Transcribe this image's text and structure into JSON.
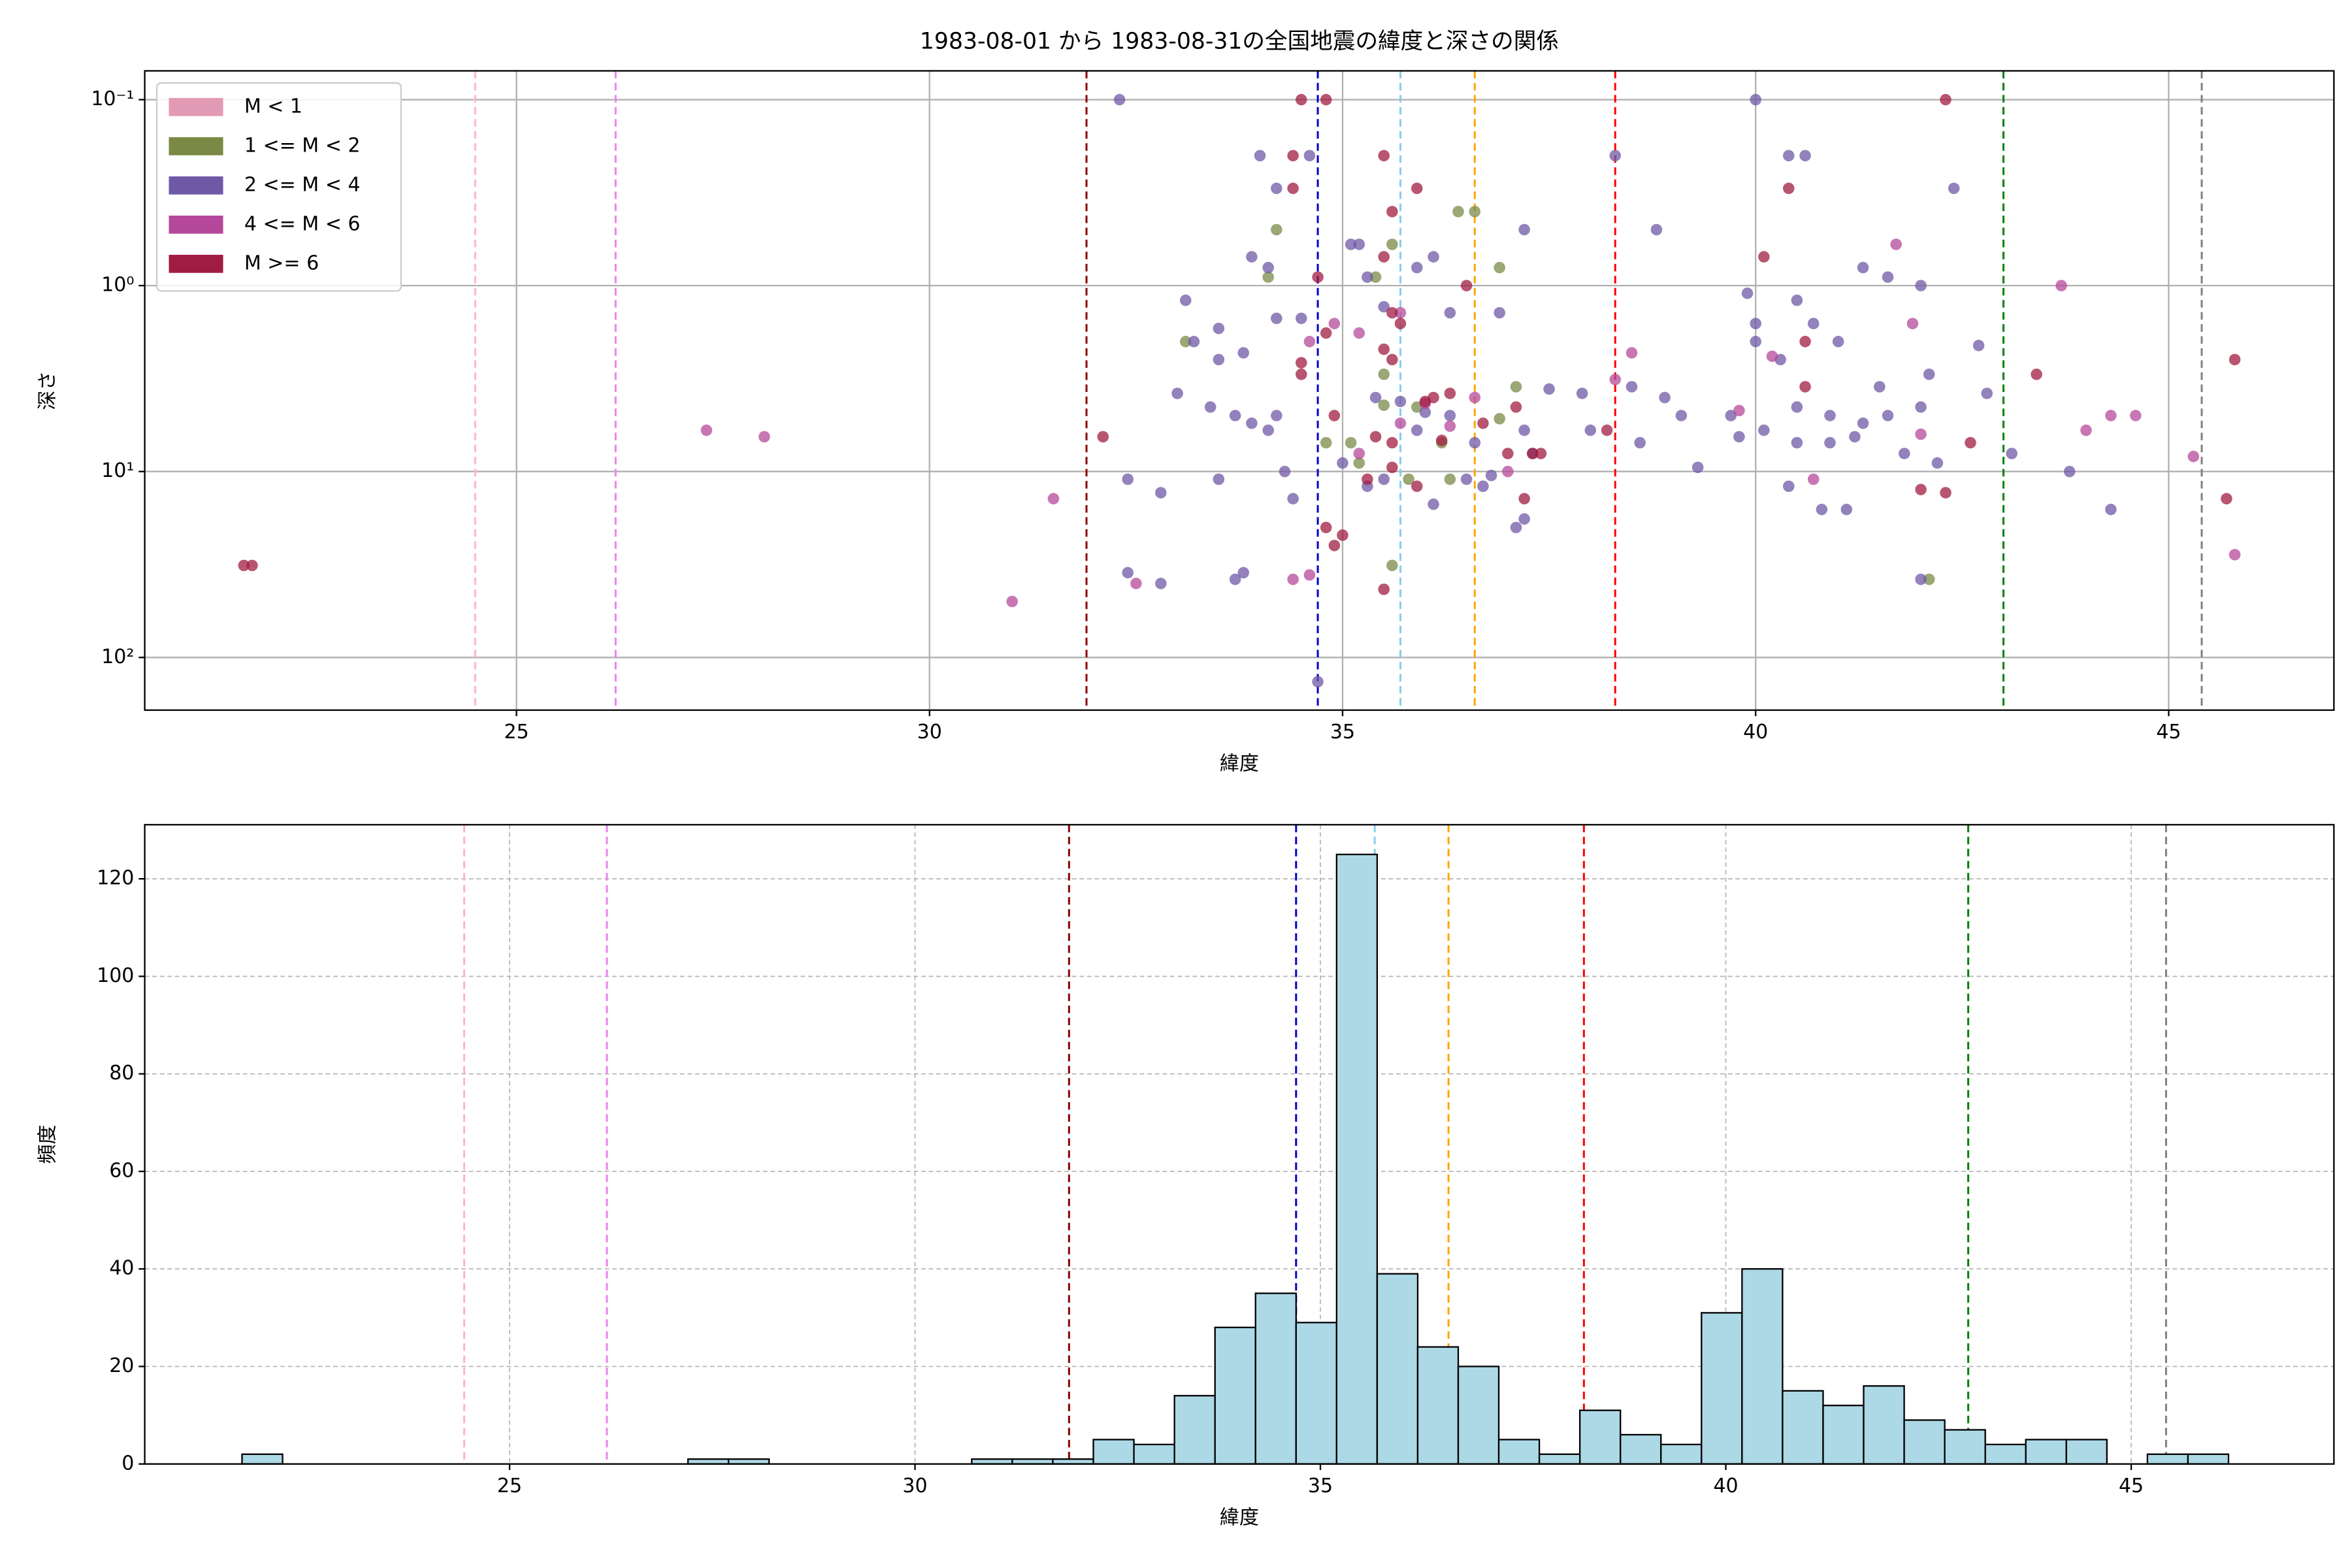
{
  "chart_data": [
    {
      "type": "scatter",
      "title": "1983-08-01 から 1983-08-31の全国地震の緯度と深さの関係",
      "xlabel": "緯度",
      "ylabel": "深さ",
      "xlim": [
        20.5,
        47.0
      ],
      "xticks": [
        25,
        30,
        35,
        40,
        45
      ],
      "ylim": [
        0.07,
        192
      ],
      "yscale": "log",
      "y_inverted": true,
      "yticks": [
        {
          "value": 0.1,
          "label": "10⁻¹"
        },
        {
          "value": 1,
          "label": "10⁰"
        },
        {
          "value": 10,
          "label": "10¹"
        },
        {
          "value": 100,
          "label": "10²"
        }
      ],
      "grid": true,
      "legend": "upper left",
      "vlines": [
        {
          "value": 24.5,
          "color": "#ffb6c1"
        },
        {
          "value": 26.2,
          "color": "#ee82ee"
        },
        {
          "value": 31.9,
          "color": "#8b0000"
        },
        {
          "value": 34.7,
          "color": "#0000cd"
        },
        {
          "value": 35.7,
          "color": "#87ceeb"
        },
        {
          "value": 36.6,
          "color": "#ffa500"
        },
        {
          "value": 38.3,
          "color": "#ff0000"
        },
        {
          "value": 43.0,
          "color": "#008000"
        },
        {
          "value": 45.4,
          "color": "#808080"
        }
      ],
      "series": [
        {
          "name": "M < 1",
          "color": "#e39ab5",
          "x": [],
          "values": []
        },
        {
          "name": "1 <= M < 2",
          "color": "#7a8a45",
          "x": [
            33.1,
            34.2,
            34.1,
            35.4,
            35.5,
            35.6,
            36.4,
            36.6,
            36.9,
            37.1,
            35.9,
            36.2,
            35.1,
            35.2,
            34.8,
            35.8,
            36.3,
            35.6,
            42.1,
            36.9,
            35.5
          ],
          "values": [
            2.0,
            0.5,
            0.9,
            0.9,
            3,
            0.6,
            0.4,
            0.4,
            0.8,
            3.5,
            4.5,
            7,
            7,
            9,
            7,
            11,
            11,
            32,
            38,
            5.2,
            4.4
          ]
        },
        {
          "name": "2 <= M < 4",
          "color": "#6f58a6",
          "x": [
            32.3,
            34.0,
            34.6,
            35.1,
            35.2,
            34.2,
            34.1,
            33.9,
            33.5,
            33.1,
            33.5,
            33.2,
            33.8,
            34.2,
            34.5,
            35.3,
            35.5,
            35.9,
            36.3,
            36.9,
            37.2,
            38.3,
            38.8,
            40.0,
            40.4,
            40.6,
            42.4,
            39.9,
            40.5,
            41.3,
            41.6,
            42.0,
            40.0,
            40.0,
            40.3,
            40.7,
            41.0,
            41.5,
            42.1,
            42.7,
            42.8,
            40.5,
            40.9,
            41.3,
            41.6,
            42.0,
            40.1,
            40.5,
            40.9,
            41.2,
            41.8,
            42.2,
            39.8,
            39.7,
            39.1,
            38.5,
            38.9,
            37.9,
            37.5,
            37.2,
            36.6,
            36.3,
            36.0,
            35.7,
            35.4,
            33.9,
            33.4,
            33.0,
            33.7,
            34.2,
            34.1,
            33.5,
            32.8,
            32.4,
            34.4,
            34.3,
            35.0,
            35.3,
            35.5,
            36.1,
            36.5,
            36.7,
            37.1,
            37.3,
            39.3,
            40.4,
            40.8,
            41.1,
            42.0,
            43.8,
            44.3,
            43.1,
            33.7,
            33.8,
            32.8,
            32.4,
            34.7,
            38.0,
            38.6,
            36.1,
            35.9,
            36.8,
            37.2
          ],
          "values": [
            0.1,
            0.2,
            0.2,
            0.6,
            0.6,
            0.3,
            0.8,
            0.7,
            1.7,
            1.2,
            2.5,
            2.0,
            2.3,
            1.5,
            1.5,
            0.9,
            1.3,
            0.8,
            1.4,
            1.4,
            0.5,
            0.2,
            0.5,
            0.1,
            0.2,
            0.2,
            0.3,
            1.1,
            1.2,
            0.8,
            0.9,
            1.0,
            1.6,
            2.0,
            2.5,
            1.6,
            2.0,
            3.5,
            3.0,
            2.1,
            3.8,
            4.5,
            5,
            5.5,
            5,
            4.5,
            6,
            7,
            7,
            6.5,
            8,
            9,
            6.5,
            5,
            5,
            3.5,
            4,
            3.8,
            3.6,
            6,
            7,
            5,
            4.8,
            4.2,
            4,
            5.5,
            4.5,
            3.8,
            5,
            5,
            6,
            11,
            13,
            11,
            14,
            10,
            9,
            12,
            11,
            15,
            11,
            12,
            20,
            8,
            9.5,
            12,
            16,
            16,
            38,
            10,
            16,
            8,
            38,
            35,
            40,
            35,
            135,
            6,
            7,
            0.7,
            6,
            10.5,
            18
          ]
        },
        {
          "name": "4 <= M < 6",
          "color": "#b5489b",
          "x": [
            27.3,
            28.0,
            31.0,
            31.5,
            32.5,
            34.4,
            34.6,
            34.9,
            35.7,
            36.6,
            37.0,
            35.7,
            36.3,
            38.3,
            38.5,
            39.8,
            40.2,
            40.7,
            41.7,
            41.9,
            42.0,
            44.0,
            44.3,
            44.6,
            45.3,
            45.8,
            43.7,
            35.2,
            34.6,
            36.0,
            35.2
          ],
          "values": [
            6,
            6.5,
            50,
            14,
            40,
            38,
            36,
            1.6,
            1.4,
            4,
            10,
            5.5,
            5.7,
            3.2,
            2.3,
            4.7,
            2.4,
            11,
            0.6,
            1.6,
            6.3,
            6,
            5,
            5,
            8.3,
            28,
            1,
            1.8,
            2.0,
            4.3,
            8
          ]
        },
        {
          "name": "M >= 6",
          "color": "#a01c40",
          "x": [
            21.8,
            21.7,
            34.5,
            34.8,
            42.3,
            34.4,
            34.4,
            35.5,
            35.6,
            35.9,
            34.7,
            35.5,
            35.6,
            35.5,
            35.6,
            36.5,
            34.5,
            34.5,
            34.8,
            35.7,
            36.0,
            36.3,
            36.7,
            37.1,
            34.9,
            35.4,
            35.6,
            35.9,
            36.2,
            37.0,
            37.3,
            37.2,
            34.8,
            34.9,
            35.0,
            32.1,
            37.4,
            40.1,
            40.4,
            40.6,
            40.6,
            42.0,
            42.3,
            42.6,
            43.4,
            45.7,
            45.8,
            38.2,
            35.3,
            35.6,
            36.1,
            35.5
          ],
          "values": [
            32,
            32,
            0.1,
            0.1,
            0.1,
            0.2,
            0.3,
            0.2,
            0.4,
            0.3,
            0.9,
            0.7,
            1.4,
            2.2,
            2.5,
            1.0,
            2.6,
            3.0,
            1.8,
            1.6,
            4.2,
            3.8,
            5.5,
            4.5,
            5,
            6.5,
            9.5,
            12,
            6.8,
            8,
            8,
            14,
            20,
            25,
            22,
            6.5,
            8,
            0.7,
            0.3,
            2,
            3.5,
            12.5,
            13,
            7,
            3,
            14,
            2.5,
            6,
            11,
            7,
            4,
            43
          ]
        }
      ]
    },
    {
      "type": "histogram",
      "xlabel": "緯度",
      "ylabel": "頻度",
      "xlim": [
        20.5,
        47.5
      ],
      "xticks": [
        25,
        30,
        35,
        40,
        45
      ],
      "ylim": [
        0,
        131.1
      ],
      "yticks": [
        0,
        20,
        40,
        60,
        80,
        100,
        120
      ],
      "grid": true,
      "color": "#add8e6",
      "edgecolor": "#000000",
      "vlines": [
        {
          "value": 24.44,
          "color": "#ffb6c1"
        },
        {
          "value": 26.2,
          "color": "#ee82ee"
        },
        {
          "value": 31.9,
          "color": "#8b0000"
        },
        {
          "value": 34.7,
          "color": "#0000cd"
        },
        {
          "value": 35.67,
          "color": "#87ceeb"
        },
        {
          "value": 36.58,
          "color": "#ffa500"
        },
        {
          "value": 38.25,
          "color": "#ff0000"
        },
        {
          "value": 42.99,
          "color": "#008000"
        },
        {
          "value": 45.43,
          "color": "#808080"
        }
      ],
      "bins": [
        21.7,
        22.2,
        22.7,
        23.2,
        23.7,
        24.2,
        24.7,
        25.2,
        25.7,
        26.2,
        26.7,
        27.2,
        27.7,
        28.2,
        28.7,
        29.2,
        29.7,
        30.2,
        30.7,
        31.2,
        31.7,
        32.2,
        32.7,
        33.2,
        33.7,
        34.2,
        34.7,
        35.2,
        35.7,
        36.2,
        36.7,
        37.2,
        37.7,
        38.2,
        38.7,
        39.2,
        39.7,
        40.2,
        40.7,
        41.2,
        41.7,
        42.2,
        42.7,
        43.2,
        43.7,
        44.2,
        44.7,
        45.2,
        45.7,
        46.2
      ],
      "values": [
        2,
        0,
        0,
        0,
        0,
        0,
        0,
        0,
        0,
        0,
        0,
        1,
        1,
        0,
        0,
        0,
        0,
        0,
        1,
        1,
        1,
        5,
        4,
        14,
        28,
        35,
        29,
        125,
        39,
        24,
        20,
        5,
        2,
        11,
        6,
        4,
        31,
        40,
        15,
        12,
        16,
        9,
        7,
        4,
        5,
        5,
        0,
        2,
        2
      ]
    }
  ]
}
